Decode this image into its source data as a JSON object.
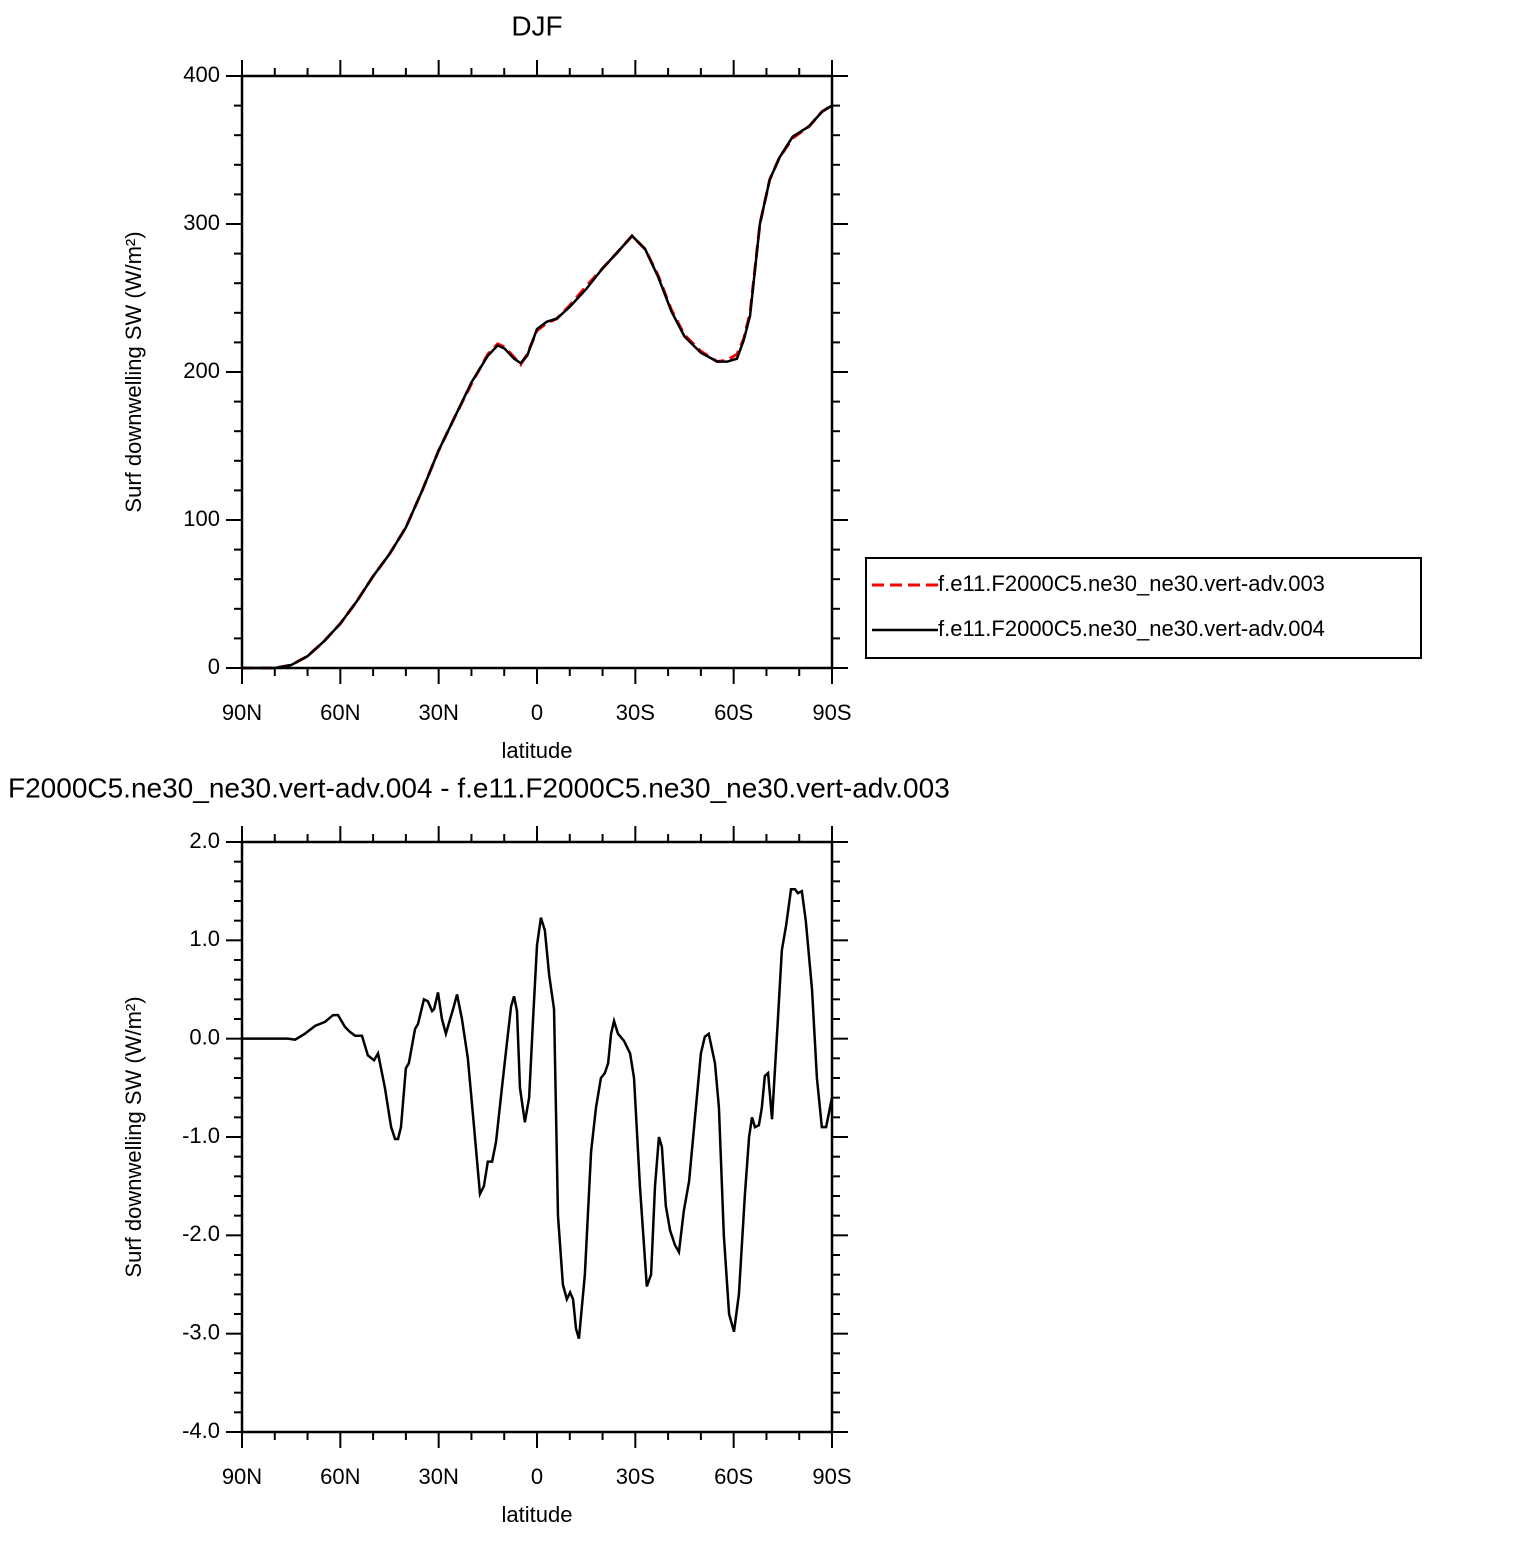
{
  "chart_data": [
    {
      "type": "line",
      "title": "DJF",
      "xlabel": "latitude",
      "ylabel": "Surf downwelling SW (W/m²)",
      "x": [
        90,
        85,
        80,
        75,
        70,
        65,
        60,
        55,
        50,
        45,
        40,
        35,
        30,
        25,
        20,
        15,
        12,
        10,
        7,
        5,
        3,
        0,
        -3,
        -6,
        -10,
        -15,
        -20,
        -25,
        -29,
        -33,
        -37,
        -41,
        -45,
        -50,
        -55,
        -58,
        -61,
        -63,
        -65,
        -68,
        -71,
        -74,
        -78,
        -83,
        -87,
        -90
      ],
      "series": [
        {
          "name": "f.e11.F2000C5.ne30_ne30.vert-adv.003",
          "color": "#ff0000",
          "dashed": true,
          "values": [
            0,
            0,
            0,
            2,
            8,
            18,
            30,
            45,
            62,
            77,
            95,
            120,
            147,
            170,
            192,
            212,
            219,
            217,
            210,
            205,
            212,
            228,
            233,
            236,
            245,
            258,
            270,
            282,
            292,
            283,
            265,
            242,
            225,
            214,
            207,
            208,
            212,
            222,
            240,
            300,
            330,
            345,
            358,
            366,
            376,
            380
          ]
        },
        {
          "name": "f.e11.F2000C5.ne30_ne30.vert-adv.004",
          "color": "#000000",
          "dashed": false,
          "values": [
            0,
            0,
            0,
            2,
            8,
            18,
            30,
            45,
            62,
            77,
            95,
            120,
            147,
            170,
            193,
            211,
            218,
            216,
            209,
            206,
            211,
            229,
            234,
            236,
            244,
            256,
            270,
            282,
            292,
            283,
            264,
            241,
            224,
            213,
            207,
            207,
            209,
            221,
            238,
            300,
            330,
            345,
            359,
            366,
            376,
            380
          ]
        }
      ],
      "xlim": [
        90,
        -90
      ],
      "xticks": [
        {
          "value": 90,
          "label": "90N"
        },
        {
          "value": 60,
          "label": "60N"
        },
        {
          "value": 30,
          "label": "30N"
        },
        0,
        {
          "value": -30,
          "label": "30S"
        },
        {
          "value": -60,
          "label": "60S"
        },
        {
          "value": -90,
          "label": "90S"
        }
      ],
      "ylim": [
        0,
        400
      ],
      "yticks": [
        0,
        100,
        200,
        300,
        400
      ],
      "legend": "right"
    },
    {
      "type": "line",
      "title": "F2000C5.ne30_ne30.vert-adv.004 - f.e11.F2000C5.ne30_ne30.vert-adv.003",
      "xlabel": "latitude",
      "ylabel": "Surf downwelling SW (W/m²)",
      "x": [
        90,
        76,
        73.8,
        70.8,
        67.7,
        64.7,
        62.2,
        60.7,
        58.6,
        57.1,
        55.5,
        53.4,
        51.6,
        49.7,
        48.5,
        46.4,
        44.5,
        43.3,
        42.4,
        41.5,
        40,
        39.1,
        37.2,
        36.3,
        34.5,
        33.3,
        32,
        31.4,
        30.2,
        29,
        27.8,
        26.5,
        25.6,
        24.4,
        22.9,
        21.1,
        19.2,
        17.4,
        16.2,
        15,
        13.7,
        12.5,
        10.7,
        9.2,
        7.9,
        7,
        6.1,
        5.2,
        3.7,
        2.4,
        1.2,
        0,
        -1.2,
        -2.4,
        -3.7,
        -5.2,
        -6.4,
        -7.9,
        -9.1,
        -10.1,
        -11,
        -11.9,
        -12.8,
        -14.6,
        -16.5,
        -18,
        -19.5,
        -20.7,
        -21.7,
        -22.6,
        -23.5,
        -24.7,
        -26.5,
        -28.4,
        -29.6,
        -31.4,
        -33.5,
        -34.8,
        -36,
        -37.2,
        -38.1,
        -39.3,
        -40.6,
        -42.1,
        -43.3,
        -44.8,
        -46.4,
        -48.2,
        -50,
        -51.2,
        -52.4,
        -54.3,
        -55.5,
        -57,
        -58.6,
        -60.1,
        -61.6,
        -63.4,
        -64.7,
        -65.6,
        -66.5,
        -67.7,
        -68.6,
        -69.5,
        -70.5,
        -71.7,
        -73.5,
        -74.7,
        -76,
        -77.5,
        -78.7,
        -79.6,
        -80.8,
        -82,
        -83.9,
        -85.4,
        -86.9,
        -88.2,
        -90
      ],
      "values": [
        0,
        0,
        -0.01,
        0.05,
        0.13,
        0.17,
        0.24,
        0.24,
        0.12,
        0.07,
        0.03,
        0.03,
        -0.17,
        -0.22,
        -0.15,
        -0.5,
        -0.9,
        -1.02,
        -1.02,
        -0.9,
        -0.3,
        -0.25,
        0.1,
        0.15,
        0.4,
        0.38,
        0.28,
        0.3,
        0.47,
        0.2,
        0.05,
        0.2,
        0.3,
        0.45,
        0.2,
        -0.2,
        -0.9,
        -1.58,
        -1.5,
        -1.25,
        -1.25,
        -1.05,
        -0.5,
        -0.05,
        0.33,
        0.43,
        0.28,
        -0.5,
        -0.85,
        -0.6,
        0.2,
        0.95,
        1.23,
        1.1,
        0.65,
        0.3,
        -1.8,
        -2.5,
        -2.65,
        -2.58,
        -2.65,
        -2.95,
        -3.05,
        -2.4,
        -1.15,
        -0.7,
        -0.4,
        -0.35,
        -0.25,
        0.05,
        0.18,
        0.05,
        -0.02,
        -0.15,
        -0.4,
        -1.5,
        -2.52,
        -2.4,
        -1.5,
        -1.0,
        -1.1,
        -1.7,
        -1.95,
        -2.1,
        -2.17,
        -1.75,
        -1.45,
        -0.8,
        -0.15,
        0.02,
        0.05,
        -0.25,
        -0.7,
        -2.0,
        -2.8,
        -2.98,
        -2.6,
        -1.6,
        -1.0,
        -0.8,
        -0.9,
        -0.88,
        -0.7,
        -0.38,
        -0.35,
        -0.82,
        0.2,
        0.9,
        1.15,
        1.52,
        1.52,
        1.48,
        1.5,
        1.2,
        0.5,
        -0.4,
        -0.9,
        -0.9,
        -0.6
      ],
      "color": "#000000",
      "xlim": [
        90,
        -90
      ],
      "xticks": [
        {
          "value": 90,
          "label": "90N"
        },
        {
          "value": 60,
          "label": "60N"
        },
        {
          "value": 30,
          "label": "30N"
        },
        0,
        {
          "value": -30,
          "label": "30S"
        },
        {
          "value": -60,
          "label": "60S"
        },
        {
          "value": -90,
          "label": "90S"
        }
      ],
      "ylim": [
        -4,
        2
      ],
      "yticks": [
        {
          "value": -4,
          "label": "-4.0"
        },
        {
          "value": -3,
          "label": "-3.0"
        },
        {
          "value": -2,
          "label": "-2.0"
        },
        {
          "value": -1,
          "label": "-1.0"
        },
        {
          "value": 0,
          "label": "0.0"
        },
        {
          "value": 1,
          "label": "1.0"
        },
        {
          "value": 2,
          "label": "2.0"
        }
      ]
    }
  ]
}
